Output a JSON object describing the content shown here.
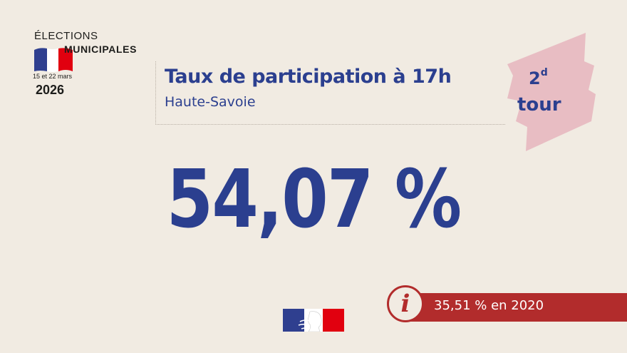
{
  "logo": {
    "line1": "ÉLECTIONS",
    "line2": "MUNICIPALES",
    "dates": "15 et 22 mars",
    "year": "2026"
  },
  "header": {
    "title": "Taux de participation à 17h",
    "subtitle": "Haute-Savoie"
  },
  "badge": {
    "number": "2",
    "superscript": "d",
    "word": "tour"
  },
  "main": {
    "value": "54,07 %"
  },
  "info": {
    "icon": "info-icon",
    "text": "35,51 % en 2020"
  },
  "colors": {
    "background": "#f1ebe2",
    "primary_blue": "#2b3f8f",
    "accent_red": "#b22c2c",
    "badge_pink": "#e8bdc3",
    "flag_blue": "#2f3f8f",
    "flag_red": "#e1000f"
  }
}
